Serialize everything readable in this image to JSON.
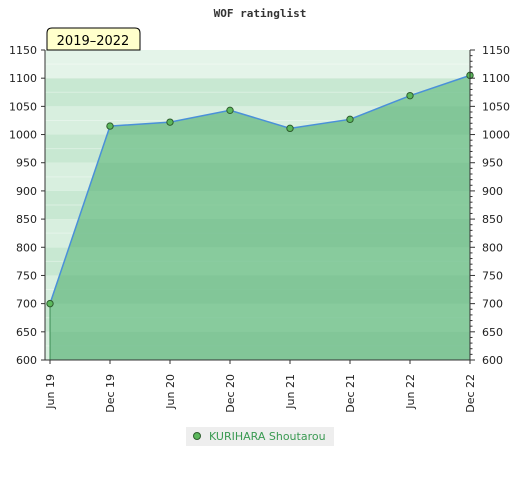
{
  "chart_data": {
    "type": "area",
    "title": "WOF ratinglist",
    "period_label": "2019–2022",
    "x": [
      "Jun 19",
      "Dec 19",
      "Jun 20",
      "Dec 20",
      "Jun 21",
      "Dec 21",
      "Jun 22",
      "Dec 22"
    ],
    "series": [
      {
        "name": "KURIHARA Shoutarou",
        "values": [
          700,
          1015,
          1022,
          1043,
          1011,
          1027,
          1069,
          1105
        ]
      }
    ],
    "ylim": [
      600,
      1150
    ],
    "y_ticks": [
      600,
      650,
      700,
      750,
      800,
      850,
      900,
      950,
      1000,
      1050,
      1100,
      1150
    ],
    "y_axis_both_sides": true,
    "grid": true,
    "legend": "bottom-center",
    "colors": {
      "line": "#4a90d9",
      "marker_fill": "#5cb85c",
      "marker_stroke": "#2e5d2e",
      "area": "#7cc594",
      "badge_bg": "#ffffcc"
    }
  }
}
